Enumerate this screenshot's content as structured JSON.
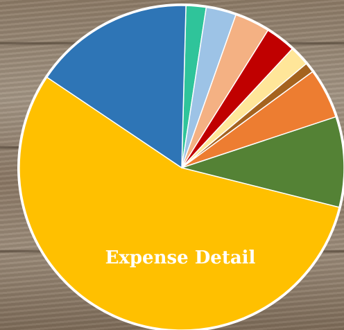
{
  "chart_data": {
    "type": "pie",
    "title": "Expense Detail",
    "values": [
      2,
      3,
      3.5,
      3,
      2,
      1,
      5,
      9,
      55.5,
      16
    ],
    "colors": [
      "#2fc49a",
      "#9dc3e6",
      "#f4b183",
      "#c00000",
      "#ffe699",
      "#a5631f",
      "#ed7d31",
      "#548235",
      "#ffc000",
      "#2e75b6"
    ]
  }
}
